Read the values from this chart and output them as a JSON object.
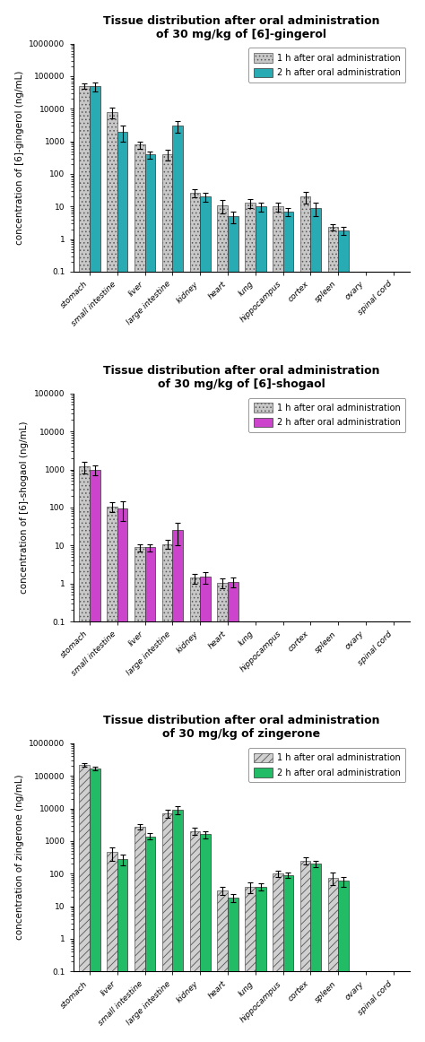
{
  "charts": [
    {
      "title": "Tissue distribution after oral administration\nof 30 mg/kg of [6]-gingerol",
      "ylabel": "concentration of [6]-gingerol (ng/mL)",
      "ylim": [
        0.1,
        1000000
      ],
      "yticks": [
        0.1,
        1,
        10,
        100,
        1000,
        10000,
        100000,
        1000000
      ],
      "ytick_labels": [
        "0.1",
        "1",
        "10",
        "100",
        "1000",
        "10000",
        "100000",
        "1000000"
      ],
      "categories": [
        "stomach",
        "small intestine",
        "liver",
        "large intestine",
        "kidney",
        "heart",
        "lung",
        "hippocampus",
        "cortex",
        "spleen",
        "ovary",
        "spinal cord"
      ],
      "bar1_values": [
        50000,
        8000,
        800,
        400,
        27,
        11,
        13,
        10,
        20,
        2.3,
        null,
        null
      ],
      "bar1_errors": [
        10000,
        3000,
        200,
        150,
        8,
        5,
        4,
        3,
        8,
        0.5,
        null,
        null
      ],
      "bar2_values": [
        50000,
        2000,
        400,
        3000,
        20,
        5,
        10,
        7,
        9,
        1.8,
        null,
        null
      ],
      "bar2_errors": [
        15000,
        1000,
        100,
        1200,
        6,
        2,
        3,
        2,
        4,
        0.5,
        null,
        null
      ],
      "bar1_color": "#c8c8c8",
      "bar2_color": "#29abb3",
      "bar1_hatch": "....",
      "bar2_hatch": "",
      "legend_label1": "1 h after oral administration",
      "legend_label2": "2 h after oral administration",
      "legend_hatch1": "....",
      "legend_hatch2": ""
    },
    {
      "title": "Tissue distribution after oral administration\nof 30 mg/kg of [6]-shogaol",
      "ylabel": "concentration of [6]-shogaol (ng/mL)",
      "ylim": [
        0.1,
        100000
      ],
      "yticks": [
        0.1,
        1,
        10,
        100,
        1000,
        10000,
        100000
      ],
      "ytick_labels": [
        "0.1",
        "1",
        "10",
        "100",
        "1000",
        "10000",
        "100000"
      ],
      "categories": [
        "stomach",
        "small intestine",
        "liver",
        "large intestine",
        "kidney",
        "heart",
        "lung",
        "hippocampus",
        "cortex",
        "spleen",
        "ovary",
        "spinal cord"
      ],
      "bar1_values": [
        1200,
        105,
        9,
        11,
        1.4,
        1.05,
        null,
        null,
        null,
        null,
        null,
        null
      ],
      "bar1_errors": [
        400,
        30,
        2,
        3,
        0.4,
        0.3,
        null,
        null,
        null,
        null,
        null,
        null
      ],
      "bar2_values": [
        1000,
        95,
        9,
        25,
        1.5,
        1.1,
        null,
        null,
        null,
        null,
        null,
        null
      ],
      "bar2_errors": [
        300,
        50,
        2,
        15,
        0.5,
        0.3,
        null,
        null,
        null,
        null,
        null,
        null
      ],
      "bar1_color": "#c8c8c8",
      "bar2_color": "#cc44cc",
      "bar1_hatch": "....",
      "bar2_hatch": "",
      "legend_label1": "1 h after oral administration",
      "legend_label2": "2 h after oral administration",
      "legend_hatch1": "....",
      "legend_hatch2": ""
    },
    {
      "title": "Tissue distribution after oral administration\nof 30 mg/kg of zingerone",
      "ylabel": "concentration of zingerone (ng/mL)",
      "ylim": [
        0.1,
        1000000
      ],
      "yticks": [
        0.1,
        1,
        10,
        100,
        1000,
        10000,
        100000,
        1000000
      ],
      "ytick_labels": [
        "0.1",
        "1",
        "10",
        "100",
        "1000",
        "10000",
        "100000",
        "1000000"
      ],
      "categories": [
        "stomach",
        "liver",
        "small intestine",
        "large intestine",
        "kidney",
        "heart",
        "lung",
        "hippocampus",
        "cortex",
        "spleen",
        "ovary",
        "spinal cord"
      ],
      "bar1_values": [
        220000,
        450,
        2800,
        7000,
        2000,
        30,
        40,
        100,
        250,
        75,
        null,
        null
      ],
      "bar1_errors": [
        30000,
        200,
        600,
        2000,
        500,
        8,
        15,
        20,
        60,
        30,
        null,
        null
      ],
      "bar2_values": [
        170000,
        280,
        1400,
        9000,
        1600,
        18,
        40,
        90,
        200,
        60,
        null,
        null
      ],
      "bar2_errors": [
        20000,
        100,
        300,
        2500,
        400,
        5,
        10,
        15,
        40,
        20,
        null,
        null
      ],
      "bar1_color": "#d0d0d0",
      "bar2_color": "#22bb66",
      "bar1_hatch": "////",
      "bar2_hatch": "",
      "legend_label1": "1 h after oral administration",
      "legend_label2": "2 h after oral administration",
      "legend_hatch1": "////",
      "legend_hatch2": ""
    }
  ],
  "background_color": "#ffffff",
  "title_fontsize": 9,
  "label_fontsize": 7.5,
  "tick_fontsize": 6.5,
  "legend_fontsize": 7,
  "bar_width": 0.38,
  "figsize": [
    4.74,
    11.62
  ],
  "dpi": 100
}
